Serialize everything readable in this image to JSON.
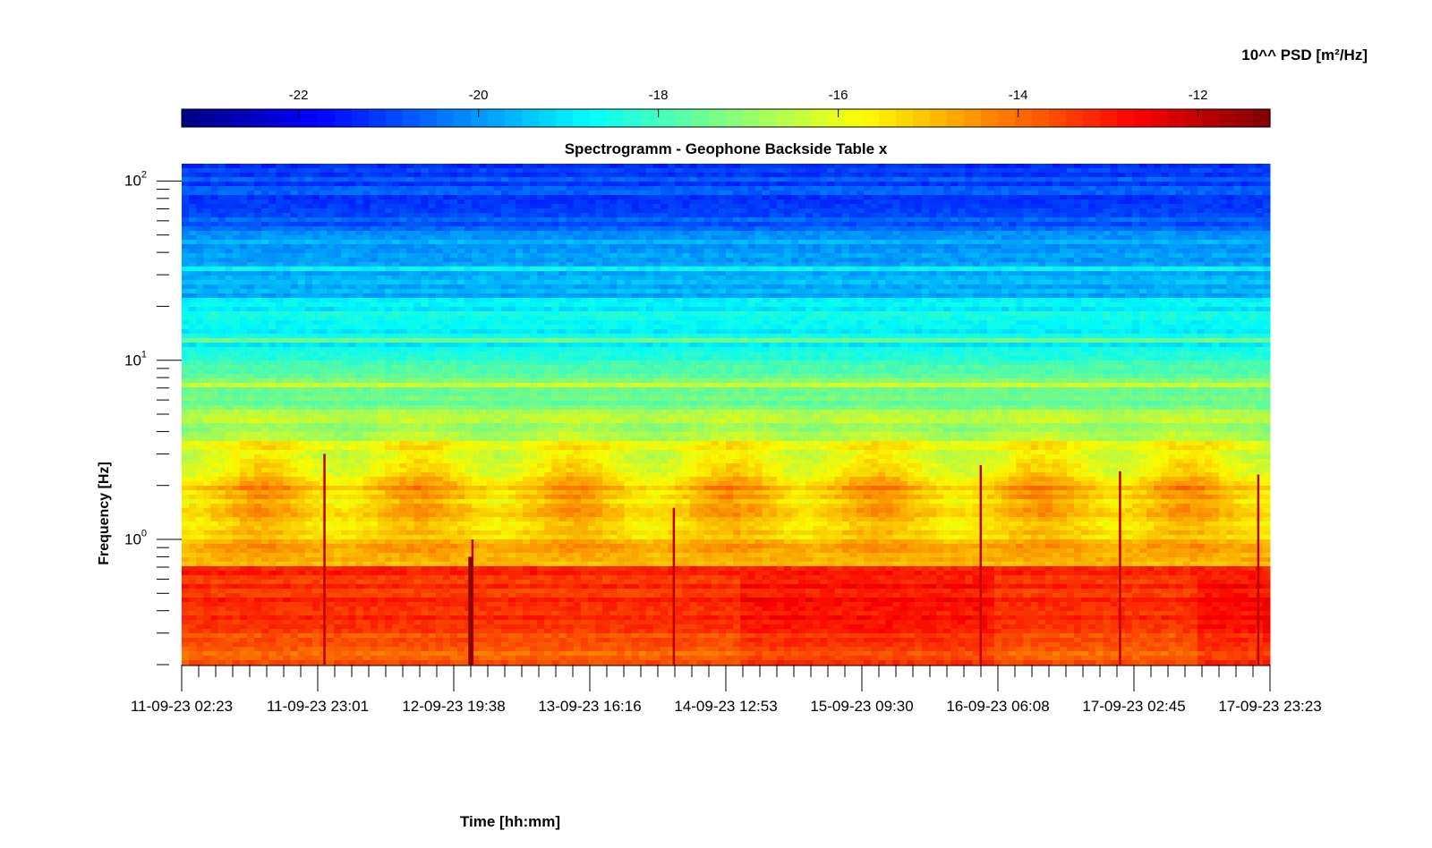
{
  "chart_data": {
    "type": "heatmap",
    "title": "Spectrogramm - Geophone Backside Table x",
    "xlabel": "Time [hh:mm]",
    "ylabel": "Frequency [Hz]",
    "y_scale": "log",
    "ylim_hz": [
      0.2,
      125
    ],
    "y_ticks": [
      {
        "base": "10",
        "exp": "0",
        "value": 1
      },
      {
        "base": "10",
        "exp": "1",
        "value": 10
      },
      {
        "base": "10",
        "exp": "2",
        "value": 100
      }
    ],
    "x_ticks": [
      "11-09-23 02:23",
      "11-09-23 23:01",
      "12-09-23 19:38",
      "13-09-23 16:16",
      "14-09-23 12:53",
      "15-09-23 09:30",
      "16-09-23 06:08",
      "17-09-23 02:45",
      "17-09-23 23:23"
    ],
    "colorbar": {
      "label": "10^^ PSD [m²/Hz]",
      "location": "top",
      "colormap": "jet",
      "range": [
        -23.3,
        -11.2
      ],
      "ticks": [
        "-22",
        "-20",
        "-18",
        "-16",
        "-14",
        "-12"
      ]
    },
    "observed_levels_log10_psd": {
      "above_50Hz": -20.5,
      "10_to_50Hz": -18.5,
      "2_to_10Hz": -17,
      "1_to_2Hz_day": -15,
      "below_0.7Hz": -13
    }
  }
}
